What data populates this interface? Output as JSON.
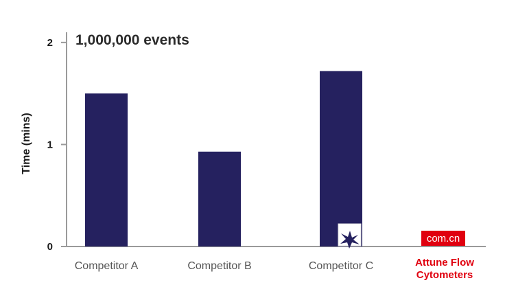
{
  "chart_data": {
    "type": "bar",
    "title": "1,000,000 events",
    "ylabel": "Time (mins)",
    "xlabel": "",
    "ylim": [
      0,
      2.1
    ],
    "yticks": [
      "0",
      "1",
      "2"
    ],
    "categories": [
      "Competitor A",
      "Competitor B",
      "Competitor C",
      "Attune Flow Cytometers"
    ],
    "values": [
      1.5,
      0.93,
      1.72,
      0.0
    ],
    "grid": false,
    "colors": {
      "bar": "#25215f",
      "axis": "#9a9a9a",
      "highlight": "#e0000f"
    }
  },
  "watermark": {
    "text": "com.cn"
  }
}
